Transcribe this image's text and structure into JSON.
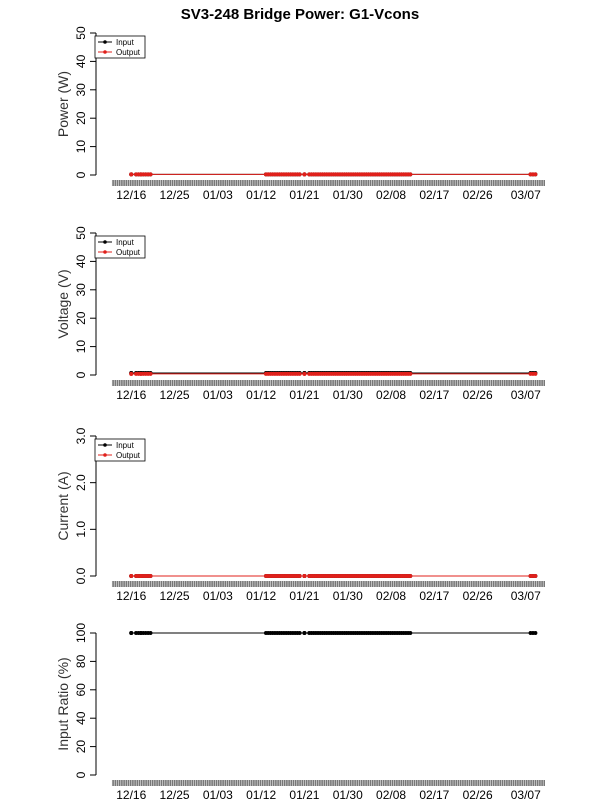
{
  "title": "SV3-248 Bridge Power: G1-Vcons",
  "colors": {
    "input": "#000000",
    "output": "#e0201b",
    "band": "#888888"
  },
  "chart_data": [
    {
      "type": "line",
      "ylabel": "Power (W)",
      "ylim": [
        0,
        50
      ],
      "yticks": [
        "0",
        "10",
        "20",
        "30",
        "40",
        "50"
      ],
      "xlim": [
        "2015-12-12",
        "2016-03-11"
      ],
      "xticks": [
        {
          "date": "2015-12-16",
          "label": "12/16"
        },
        {
          "date": "2015-12-25",
          "label": "12/25"
        },
        {
          "date": "2016-01-03",
          "label": "01/03"
        },
        {
          "date": "2016-01-12",
          "label": "01/12"
        },
        {
          "date": "2016-01-21",
          "label": "01/21"
        },
        {
          "date": "2016-01-30",
          "label": "01/30"
        },
        {
          "date": "2016-02-08",
          "label": "02/08"
        },
        {
          "date": "2016-02-17",
          "label": "02/17"
        },
        {
          "date": "2016-02-26",
          "label": "02/26"
        },
        {
          "date": "2016-03-07",
          "label": "03/07"
        }
      ],
      "legend": {
        "placement": "top-left",
        "entries": [
          "Input",
          "Output"
        ]
      },
      "series": [
        {
          "name": "Input",
          "color": "#000000",
          "value": 0.2
        },
        {
          "name": "Output",
          "color": "#e0201b",
          "value": 0.2
        }
      ]
    },
    {
      "type": "line",
      "ylabel": "Voltage (V)",
      "ylim": [
        0,
        50
      ],
      "yticks": [
        "0",
        "10",
        "20",
        "30",
        "40",
        "50"
      ],
      "xlim": [
        "2015-12-12",
        "2016-03-11"
      ],
      "xticks": [
        {
          "date": "2015-12-16",
          "label": "12/16"
        },
        {
          "date": "2015-12-25",
          "label": "12/25"
        },
        {
          "date": "2016-01-03",
          "label": "01/03"
        },
        {
          "date": "2016-01-12",
          "label": "01/12"
        },
        {
          "date": "2016-01-21",
          "label": "01/21"
        },
        {
          "date": "2016-01-30",
          "label": "01/30"
        },
        {
          "date": "2016-02-08",
          "label": "02/08"
        },
        {
          "date": "2016-02-17",
          "label": "02/17"
        },
        {
          "date": "2016-02-26",
          "label": "02/26"
        },
        {
          "date": "2016-03-07",
          "label": "03/07"
        }
      ],
      "legend": {
        "placement": "top-left",
        "entries": [
          "Input",
          "Output"
        ]
      },
      "series": [
        {
          "name": "Input",
          "color": "#000000",
          "value": 0.7
        },
        {
          "name": "Output",
          "color": "#e0201b",
          "value": 0.4
        }
      ]
    },
    {
      "type": "line",
      "ylabel": "Current (A)",
      "ylim": [
        0,
        3
      ],
      "yticks": [
        "0.0",
        "1.0",
        "2.0",
        "3.0"
      ],
      "xlim": [
        "2015-12-12",
        "2016-03-11"
      ],
      "xticks": [
        {
          "date": "2015-12-16",
          "label": "12/16"
        },
        {
          "date": "2015-12-25",
          "label": "12/25"
        },
        {
          "date": "2016-01-03",
          "label": "01/03"
        },
        {
          "date": "2016-01-12",
          "label": "01/12"
        },
        {
          "date": "2016-01-21",
          "label": "01/21"
        },
        {
          "date": "2016-01-30",
          "label": "01/30"
        },
        {
          "date": "2016-02-08",
          "label": "02/08"
        },
        {
          "date": "2016-02-17",
          "label": "02/17"
        },
        {
          "date": "2016-02-26",
          "label": "02/26"
        },
        {
          "date": "2016-03-07",
          "label": "03/07"
        }
      ],
      "legend": {
        "placement": "top-left",
        "entries": [
          "Input",
          "Output"
        ]
      },
      "series": [
        {
          "name": "Input",
          "color": "#000000",
          "value": 0.0
        },
        {
          "name": "Output",
          "color": "#e0201b",
          "value": 0.0
        }
      ]
    },
    {
      "type": "line",
      "ylabel": "Input Ratio (%)",
      "ylim": [
        0,
        100
      ],
      "yticks": [
        "0",
        "20",
        "40",
        "60",
        "80",
        "100"
      ],
      "xlim": [
        "2015-12-12",
        "2016-03-11"
      ],
      "xticks": [
        {
          "date": "2015-12-16",
          "label": "12/16"
        },
        {
          "date": "2015-12-25",
          "label": "12/25"
        },
        {
          "date": "2016-01-03",
          "label": "01/03"
        },
        {
          "date": "2016-01-12",
          "label": "01/12"
        },
        {
          "date": "2016-01-21",
          "label": "01/21"
        },
        {
          "date": "2016-01-30",
          "label": "01/30"
        },
        {
          "date": "2016-02-08",
          "label": "02/08"
        },
        {
          "date": "2016-02-17",
          "label": "02/17"
        },
        {
          "date": "2016-02-26",
          "label": "02/26"
        },
        {
          "date": "2016-03-07",
          "label": "03/07"
        }
      ],
      "legend": null,
      "series": [
        {
          "name": "Input",
          "color": "#000000",
          "value": 100
        }
      ]
    }
  ],
  "data_clusters": [
    {
      "start": "2015-12-16",
      "end": "2015-12-16"
    },
    {
      "start": "2015-12-17",
      "end": "2015-12-18"
    },
    {
      "start": "2015-12-18",
      "end": "2015-12-20"
    },
    {
      "start": "2016-01-13",
      "end": "2016-01-20"
    },
    {
      "start": "2016-01-21",
      "end": "2016-01-21"
    },
    {
      "start": "2016-01-22",
      "end": "2016-02-12"
    },
    {
      "start": "2016-03-08",
      "end": "2016-03-09"
    }
  ]
}
